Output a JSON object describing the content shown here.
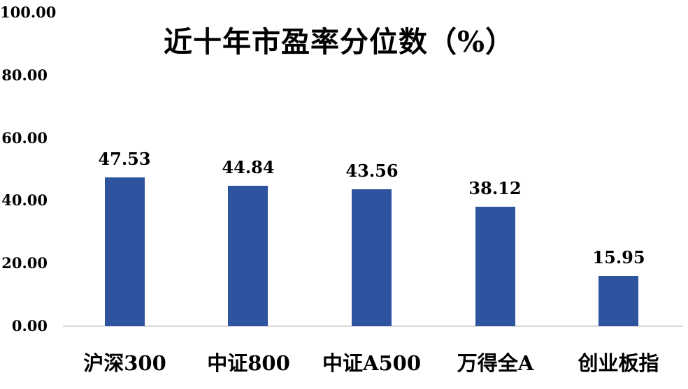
{
  "chart_data": {
    "type": "bar",
    "title": "近十年市盈率分位数（%）",
    "categories": [
      "沪深300",
      "中证800",
      "中证A500",
      "万得全A",
      "创业板指"
    ],
    "series": [
      {
        "name": "近十年市盈率分位数",
        "values": [
          47.53,
          44.84,
          43.56,
          38.12,
          15.95
        ]
      }
    ],
    "value_labels": [
      "47.53",
      "44.84",
      "43.56",
      "38.12",
      "15.95"
    ],
    "xlabel": "",
    "ylabel": "",
    "ylim": [
      0,
      100
    ],
    "yticks": [
      0,
      20,
      40,
      60,
      80,
      100
    ],
    "ytick_labels": [
      "0.00",
      "20.00",
      "40.00",
      "60.00",
      "80.00",
      "100.00"
    ],
    "grid": false,
    "legend": false,
    "colors": {
      "bar": "#2E54A0",
      "axis_line": "#D9D9D9",
      "text": "#000000",
      "background": "#FFFFFF"
    }
  }
}
